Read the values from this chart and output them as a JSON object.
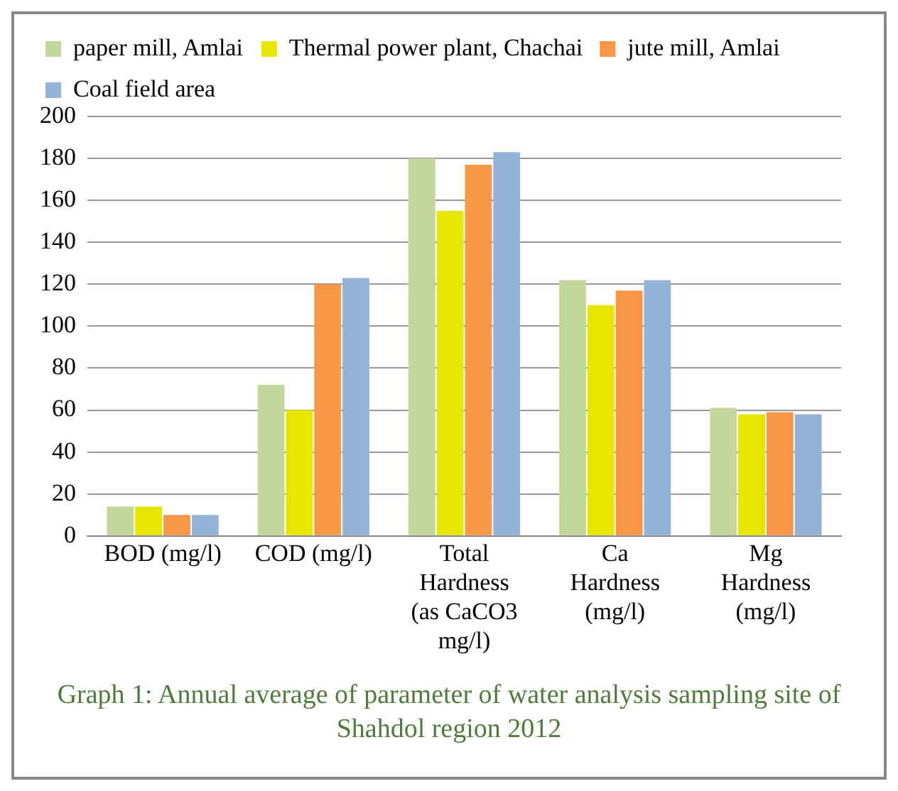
{
  "chart_data": {
    "type": "bar",
    "categories": [
      "BOD (mg/l)",
      "COD (mg/l)",
      "Total Hardness (as CaCO3 mg/l)",
      "Ca Hardness (mg/l)",
      "Mg Hardness (mg/l)"
    ],
    "series": [
      {
        "name": "paper mill, Amlai",
        "color": "#c3d69b",
        "values": [
          14,
          72,
          180,
          122,
          61
        ]
      },
      {
        "name": "Thermal power plant, Chachai",
        "color": "#e6e600",
        "values": [
          14,
          60,
          155,
          110,
          58
        ]
      },
      {
        "name": "jute mill, Amlai",
        "color": "#f79646",
        "values": [
          10,
          120,
          177,
          117,
          59
        ]
      },
      {
        "name": "Coal field area",
        "color": "#95b3d7",
        "values": [
          10,
          123,
          183,
          122,
          58
        ]
      }
    ],
    "ylim": [
      0,
      200
    ],
    "yticks": [
      0,
      20,
      40,
      60,
      80,
      100,
      120,
      140,
      160,
      180,
      200
    ],
    "grid": "y",
    "legend": "top",
    "annotations": [
      "Graph 1:  Annual average of parameter of water analysis sampling site of Shahdol region 2012"
    ]
  }
}
